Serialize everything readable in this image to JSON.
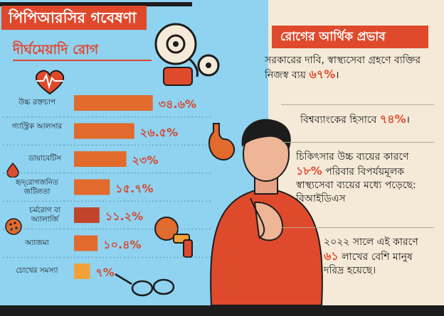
{
  "header": {
    "title": "পিপিআরসির গবেষণা",
    "subtitle": "দীর্ঘমেয়াদি রোগ"
  },
  "chart_data": {
    "type": "bar",
    "orientation": "horizontal",
    "categories": [
      "উচ্চ রক্তচাপ",
      "গ্যাস্ট্রিক আলসার",
      "ডায়াবেটিস",
      "হৃদ্‌রোগজনিত জটিলতা",
      "চর্মরোগ বা অ্যালার্জি",
      "অ্যাজমা",
      "চোখের সমস্যা"
    ],
    "values": [
      34.6,
      26.5,
      23,
      15.7,
      11.2,
      10.4,
      7
    ],
    "value_labels": [
      "৩৪.৬%",
      "২৬.৫%",
      "২৩%",
      "১৫.৭%",
      "১১.২%",
      "১০.৪%",
      "৭%"
    ],
    "bar_colors": [
      "#e26a2c",
      "#e26a2c",
      "#e26a2c",
      "#e26a2c",
      "#c2452b",
      "#e26a2c",
      "#f2a13a"
    ]
  },
  "right": {
    "header": "রোগের আর্থিক প্রভাব",
    "blocks": [
      {
        "pre": "সরকারের দাবি, স্বাস্থ্যসেবা গ্রহণে ব্যক্তির নিজস্ব ব্যয় ",
        "hl": "৬৭%",
        "post": "।"
      },
      {
        "pre": "বিশ্বব্যাংকের হিসাবে ",
        "hl": "৭৪%",
        "post": "।"
      },
      {
        "pre": "চিকিৎসার উচ্চ ব্যয়ের কারণে ",
        "hl": "১৮%",
        "post": " পরিবার বিপর্যয়মূলক স্বাস্থ্যসেবা ব্যয়ের মধ্যে পড়েছে: বিআইডিএস"
      },
      {
        "pre": "২০২২ সালে এই কারণে ",
        "hl": "৬১",
        "post": " লাখের বেশি মানুষ দরিদ্র হয়েছে।"
      }
    ]
  },
  "colors": {
    "blue": "#8fd3f1",
    "beige": "#f4ead7",
    "accent": "#e3462c",
    "dark": "#1c1c1c"
  }
}
